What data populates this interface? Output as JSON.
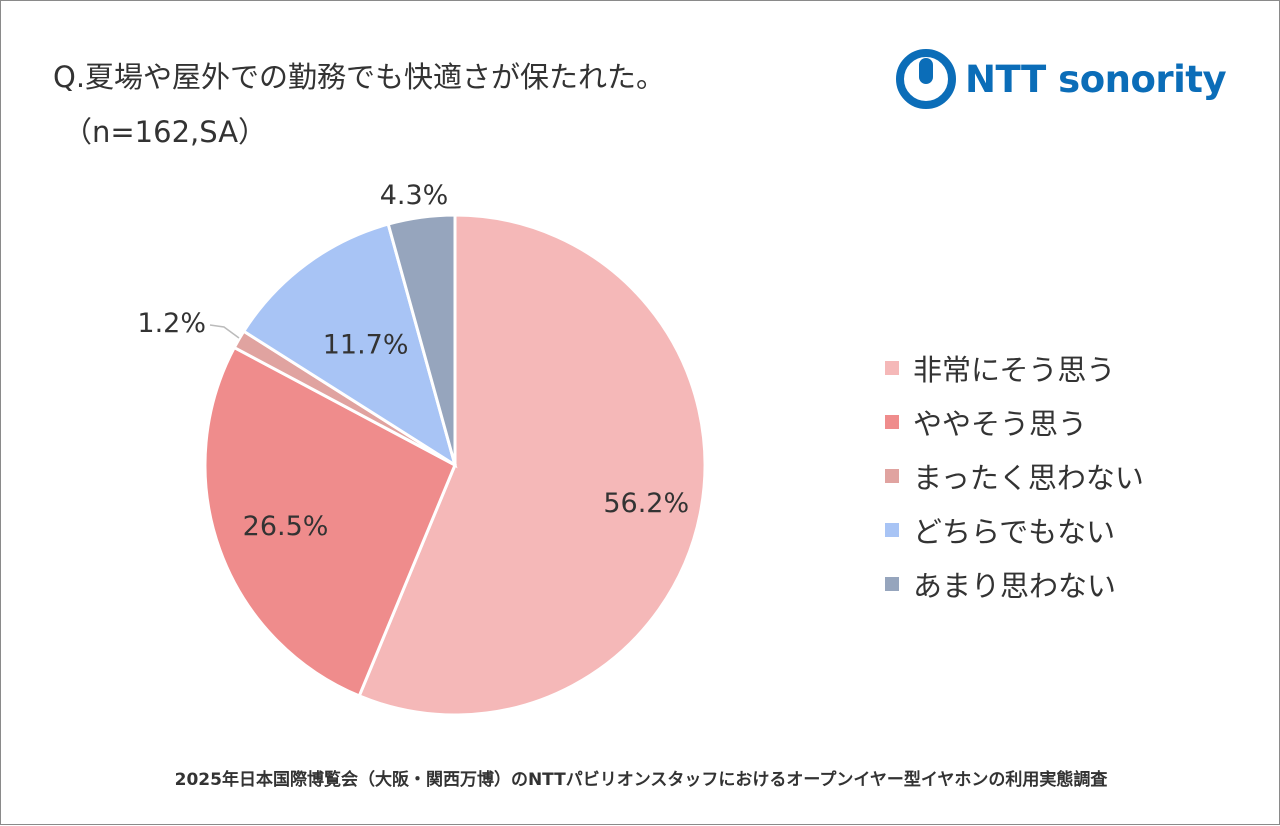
{
  "header": {
    "title": "Q.夏場や屋外での勤務でも快適さが保たれた。",
    "subtitle": "（n=162,SA）",
    "logo_text": "NTT sonority",
    "logo_color": "#0b6db8"
  },
  "chart_data": {
    "type": "pie",
    "title": "Q.夏場や屋外での勤務でも快適さが保たれた。",
    "slices": [
      {
        "label": "非常にそう思う",
        "value": 56.2,
        "display": "56.2%",
        "color": "#f5b8b8"
      },
      {
        "label": "ややそう思う",
        "value": 26.5,
        "display": "26.5%",
        "color": "#ef8c8c"
      },
      {
        "label": "まったく思わない",
        "value": 1.2,
        "display": "1.2%",
        "color": "#e0a3a0"
      },
      {
        "label": "どちらでもない",
        "value": 11.7,
        "display": "11.7%",
        "color": "#a8c4f5"
      },
      {
        "label": "あまり思わない",
        "value": 4.3,
        "display": "4.3%",
        "color": "#96a5bd"
      }
    ],
    "legend_position": "right"
  },
  "footer": {
    "source": "2025年日本国際博覧会（大阪・関西万博）のNTTパビリオンスタッフにおけるオープンイヤー型イヤホンの利用実態調査"
  }
}
